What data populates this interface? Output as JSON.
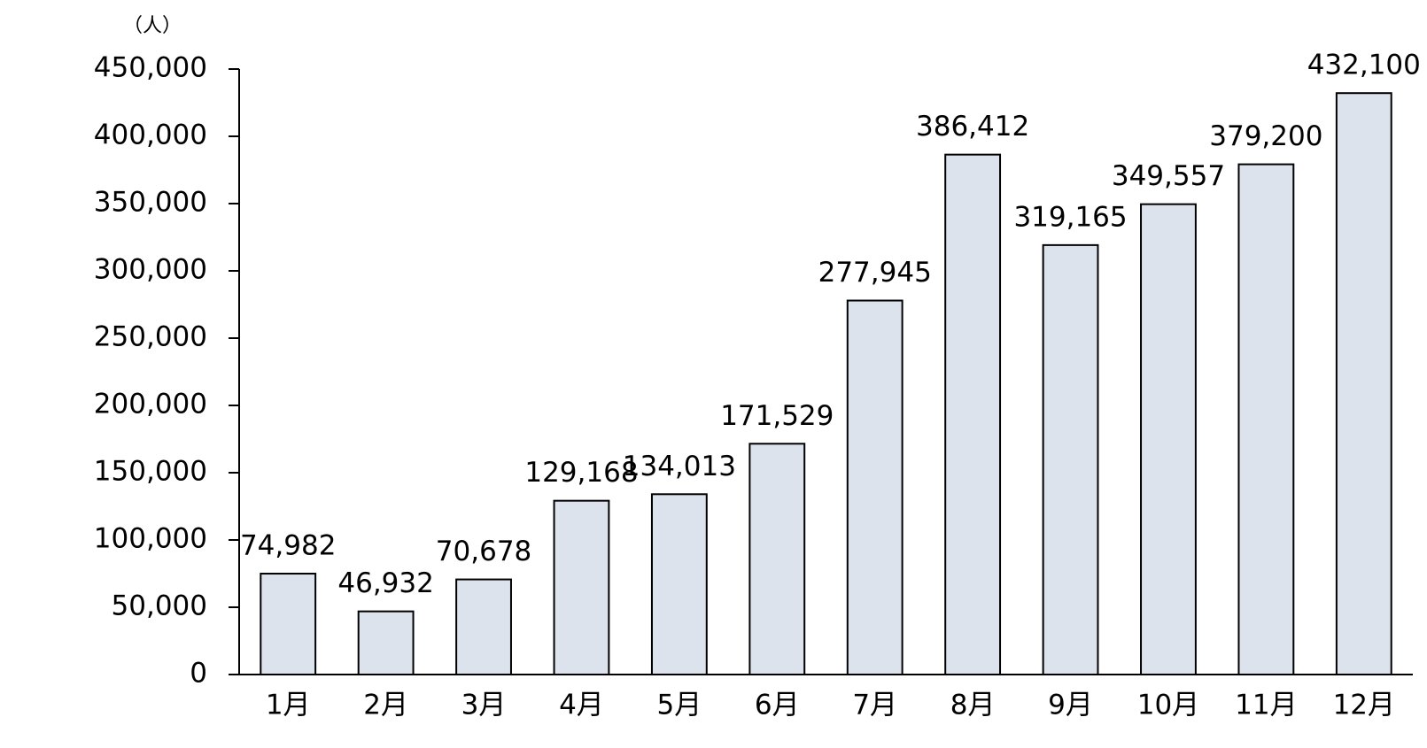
{
  "chart_data": {
    "type": "bar",
    "y_unit_label": "（人）",
    "categories": [
      "1月",
      "2月",
      "3月",
      "4月",
      "5月",
      "6月",
      "7月",
      "8月",
      "9月",
      "10月",
      "11月",
      "12月"
    ],
    "values": [
      74982,
      46932,
      70678,
      129168,
      134013,
      171529,
      277945,
      386412,
      319165,
      349557,
      379200,
      432100
    ],
    "value_labels": [
      "74,982",
      "46,932",
      "70,678",
      "129,168",
      "134,013",
      "171,529",
      "277,945",
      "386,412",
      "319,165",
      "349,557",
      "379,200",
      "432,100"
    ],
    "color": "#dde3ed",
    "ylim": [
      0,
      450000
    ],
    "yticks": [
      0,
      {
        "value": 50000,
        "label": "50,000"
      },
      {
        "value": 100000,
        "label": "100,000"
      },
      {
        "value": 150000,
        "label": "150,000"
      },
      {
        "value": 200000,
        "label": "200,000"
      },
      {
        "value": 250000,
        "label": "250,000"
      },
      {
        "value": 300000,
        "label": "300,000"
      },
      {
        "value": 350000,
        "label": "350,000"
      },
      {
        "value": 400000,
        "label": "400,000"
      },
      {
        "value": 450000,
        "label": "450,000"
      }
    ],
    "grid": false
  }
}
